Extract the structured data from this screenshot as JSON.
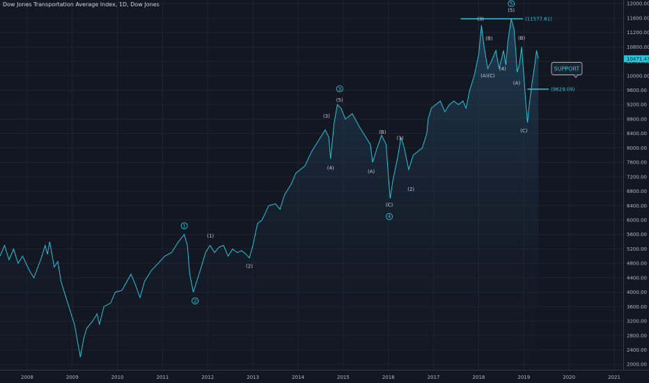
{
  "chart_data": {
    "type": "line",
    "title": "Dow Jones Transportation Average Index, 1D, Dow Jones",
    "x_ticks": [
      "2008",
      "2009",
      "2010",
      "2011",
      "2012",
      "2013",
      "2014",
      "2015",
      "2016",
      "2017",
      "2018",
      "2019",
      "2020",
      "2021"
    ],
    "y_ticks": [
      2000,
      2400,
      2800,
      3200,
      3600,
      4000,
      4400,
      4800,
      5200,
      5600,
      6000,
      6400,
      6800,
      7200,
      7600,
      8000,
      8400,
      8800,
      9200,
      9600,
      10000,
      10400,
      10800,
      11200,
      11600,
      12000
    ],
    "y_tick_labels": [
      "2000.00",
      "2400.00",
      "2800.00",
      "3200.00",
      "3600.00",
      "4000.00",
      "4400.00",
      "4800.00",
      "5200.00",
      "5600.00",
      "6000.00",
      "6400.00",
      "6800.00",
      "7200.00",
      "7600.00",
      "8000.00",
      "8400.00",
      "8800.00",
      "9200.00",
      "9600.00",
      "10000.00",
      "10400.00",
      "10800.00",
      "11200.00",
      "11600.00",
      "12000.00"
    ],
    "ylim": [
      1850,
      12100
    ],
    "xlim": [
      2007.4,
      2021.2
    ],
    "current_value_label": "10471.47",
    "current_value": 10471.47,
    "series": [
      {
        "color": "#26c6da",
        "points": [
          [
            2007.4,
            5000
          ],
          [
            2007.5,
            5300
          ],
          [
            2007.6,
            4900
          ],
          [
            2007.7,
            5200
          ],
          [
            2007.8,
            4800
          ],
          [
            2007.9,
            5000
          ],
          [
            2008.05,
            4600
          ],
          [
            2008.15,
            4400
          ],
          [
            2008.3,
            4900
          ],
          [
            2008.4,
            5300
          ],
          [
            2008.45,
            5050
          ],
          [
            2008.5,
            5400
          ],
          [
            2008.55,
            5050
          ],
          [
            2008.6,
            4700
          ],
          [
            2008.68,
            4850
          ],
          [
            2008.75,
            4300
          ],
          [
            2008.85,
            3900
          ],
          [
            2008.95,
            3500
          ],
          [
            2009.05,
            3100
          ],
          [
            2009.12,
            2600
          ],
          [
            2009.18,
            2200
          ],
          [
            2009.25,
            2700
          ],
          [
            2009.32,
            3000
          ],
          [
            2009.45,
            3200
          ],
          [
            2009.55,
            3400
          ],
          [
            2009.6,
            3100
          ],
          [
            2009.7,
            3600
          ],
          [
            2009.85,
            3700
          ],
          [
            2009.95,
            4000
          ],
          [
            2010.1,
            4050
          ],
          [
            2010.3,
            4500
          ],
          [
            2010.4,
            4200
          ],
          [
            2010.5,
            3850
          ],
          [
            2010.6,
            4300
          ],
          [
            2010.75,
            4600
          ],
          [
            2010.9,
            4800
          ],
          [
            2011.05,
            5000
          ],
          [
            2011.2,
            5100
          ],
          [
            2011.35,
            5400
          ],
          [
            2011.48,
            5600
          ],
          [
            2011.55,
            5300
          ],
          [
            2011.6,
            4500
          ],
          [
            2011.68,
            4000
          ],
          [
            2011.78,
            4400
          ],
          [
            2011.88,
            4800
          ],
          [
            2011.95,
            5100
          ],
          [
            2012.05,
            5300
          ],
          [
            2012.15,
            5100
          ],
          [
            2012.25,
            5250
          ],
          [
            2012.35,
            5300
          ],
          [
            2012.45,
            5000
          ],
          [
            2012.55,
            5200
          ],
          [
            2012.65,
            5100
          ],
          [
            2012.75,
            5150
          ],
          [
            2012.85,
            5050
          ],
          [
            2012.92,
            4950
          ],
          [
            2013.0,
            5300
          ],
          [
            2013.1,
            5900
          ],
          [
            2013.2,
            6000
          ],
          [
            2013.35,
            6400
          ],
          [
            2013.5,
            6450
          ],
          [
            2013.6,
            6300
          ],
          [
            2013.7,
            6700
          ],
          [
            2013.85,
            7000
          ],
          [
            2013.95,
            7300
          ],
          [
            2014.05,
            7400
          ],
          [
            2014.15,
            7500
          ],
          [
            2014.3,
            7900
          ],
          [
            2014.45,
            8200
          ],
          [
            2014.6,
            8500
          ],
          [
            2014.68,
            8300
          ],
          [
            2014.72,
            7700
          ],
          [
            2014.8,
            8700
          ],
          [
            2014.87,
            9200
          ],
          [
            2014.95,
            9100
          ],
          [
            2015.05,
            8800
          ],
          [
            2015.2,
            8950
          ],
          [
            2015.35,
            8600
          ],
          [
            2015.5,
            8300
          ],
          [
            2015.6,
            8100
          ],
          [
            2015.65,
            7600
          ],
          [
            2015.75,
            8000
          ],
          [
            2015.85,
            8350
          ],
          [
            2015.95,
            8100
          ],
          [
            2016.0,
            7200
          ],
          [
            2016.04,
            6600
          ],
          [
            2016.1,
            7100
          ],
          [
            2016.2,
            7700
          ],
          [
            2016.28,
            8300
          ],
          [
            2016.35,
            8000
          ],
          [
            2016.45,
            7400
          ],
          [
            2016.55,
            7800
          ],
          [
            2016.65,
            7900
          ],
          [
            2016.75,
            8000
          ],
          [
            2016.85,
            8400
          ],
          [
            2016.88,
            8800
          ],
          [
            2016.95,
            9100
          ],
          [
            2017.05,
            9200
          ],
          [
            2017.15,
            9300
          ],
          [
            2017.25,
            9000
          ],
          [
            2017.35,
            9200
          ],
          [
            2017.45,
            9300
          ],
          [
            2017.55,
            9200
          ],
          [
            2017.65,
            9300
          ],
          [
            2017.72,
            9100
          ],
          [
            2017.8,
            9600
          ],
          [
            2017.9,
            10000
          ],
          [
            2018.0,
            10600
          ],
          [
            2018.06,
            11400
          ],
          [
            2018.12,
            10800
          ],
          [
            2018.2,
            10200
          ],
          [
            2018.28,
            10400
          ],
          [
            2018.38,
            10700
          ],
          [
            2018.45,
            10200
          ],
          [
            2018.55,
            10700
          ],
          [
            2018.6,
            10300
          ],
          [
            2018.65,
            11000
          ],
          [
            2018.72,
            11577
          ],
          [
            2018.78,
            11300
          ],
          [
            2018.82,
            10700
          ],
          [
            2018.85,
            10100
          ],
          [
            2018.9,
            10300
          ],
          [
            2018.95,
            10800
          ],
          [
            2019.0,
            10000
          ],
          [
            2019.04,
            9300
          ],
          [
            2019.08,
            8700
          ],
          [
            2019.12,
            9200
          ],
          [
            2019.18,
            9800
          ],
          [
            2019.24,
            10300
          ],
          [
            2019.28,
            10700
          ],
          [
            2019.32,
            10471
          ]
        ]
      }
    ],
    "levels": [
      {
        "label": "(11577.61)",
        "value": 11577.61,
        "x_from": 2017.6,
        "x_to": 2018.98
      },
      {
        "label": "(9629.09)",
        "value": 9629.09,
        "x_from": 2019.08,
        "x_to": 2019.55
      }
    ],
    "annotations": [
      {
        "text": "SUPPORT",
        "kind": "callout",
        "x": 2019.95,
        "y": 10200
      },
      {
        "text": "1",
        "kind": "circle",
        "x": 2011.48,
        "y": 5840
      },
      {
        "text": "2",
        "kind": "circle",
        "x": 2011.72,
        "y": 3760
      },
      {
        "text": "(1)",
        "kind": "label",
        "x": 2012.06,
        "y": 5560
      },
      {
        "text": "(2)",
        "kind": "label",
        "x": 2012.92,
        "y": 4720
      },
      {
        "text": "3",
        "kind": "circle",
        "x": 2014.92,
        "y": 9640
      },
      {
        "text": "(5)",
        "kind": "label",
        "x": 2014.92,
        "y": 9330
      },
      {
        "text": "(3)",
        "kind": "label",
        "x": 2014.63,
        "y": 8880
      },
      {
        "text": "(4)",
        "kind": "label",
        "x": 2014.72,
        "y": 7450
      },
      {
        "text": "(B)",
        "kind": "label",
        "x": 2015.87,
        "y": 8440
      },
      {
        "text": "(A)",
        "kind": "label",
        "x": 2015.62,
        "y": 7350
      },
      {
        "text": "(C)",
        "kind": "label",
        "x": 2016.02,
        "y": 6420
      },
      {
        "text": "4",
        "kind": "circle",
        "x": 2016.02,
        "y": 6100
      },
      {
        "text": "(1)",
        "kind": "label",
        "x": 2016.26,
        "y": 8280
      },
      {
        "text": "(2)",
        "kind": "label",
        "x": 2016.5,
        "y": 6860
      },
      {
        "text": "(3)",
        "kind": "label",
        "x": 2018.04,
        "y": 11580
      },
      {
        "text": "(B)",
        "kind": "label",
        "x": 2018.23,
        "y": 11040
      },
      {
        "text": "(A)",
        "kind": "label",
        "x": 2018.12,
        "y": 10000
      },
      {
        "text": "(C)",
        "kind": "label",
        "x": 2018.28,
        "y": 10000
      },
      {
        "text": "(4)",
        "kind": "label",
        "x": 2018.53,
        "y": 10200
      },
      {
        "text": "5",
        "kind": "circle",
        "x": 2018.72,
        "y": 12000
      },
      {
        "text": "(5)",
        "kind": "label",
        "x": 2018.72,
        "y": 11820
      },
      {
        "text": "(B)",
        "kind": "label",
        "x": 2018.95,
        "y": 11050
      },
      {
        "text": "(A)",
        "kind": "label",
        "x": 2018.84,
        "y": 9800
      },
      {
        "text": "(C)",
        "kind": "label",
        "x": 2019.0,
        "y": 8480
      }
    ]
  }
}
